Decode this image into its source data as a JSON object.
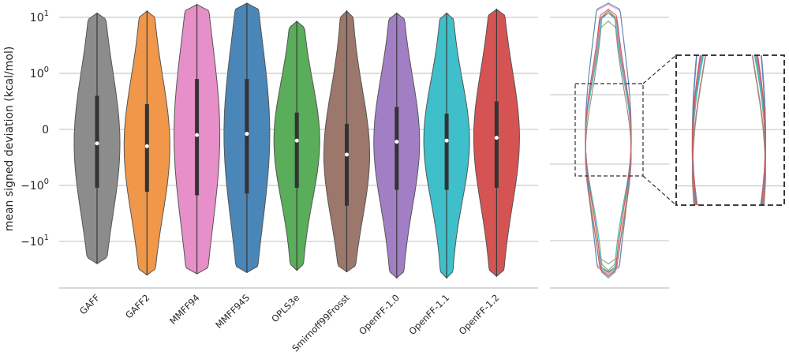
{
  "chart_data": {
    "type": "violin",
    "ylabel": "mean signed deviation (kcal/mol)",
    "yscale": "symlog",
    "y_ticks": [
      {
        "value": 10,
        "base": "10",
        "exp": "1"
      },
      {
        "value": 1,
        "base": "10",
        "exp": "0"
      },
      {
        "value": 0,
        "base": "0",
        "exp": ""
      },
      {
        "value": -1,
        "base": "−10",
        "exp": "0"
      },
      {
        "value": -10,
        "base": "−10",
        "exp": "1"
      }
    ],
    "grid": true,
    "categories": [
      "GAFF",
      "GAFF2",
      "MMFF94",
      "MMFF94S",
      "OPLS3e",
      "Smirnoff99Frosst",
      "OpenFF-1.0",
      "OpenFF-1.1",
      "OpenFF-1.2"
    ],
    "colors": [
      "#8c8c8c",
      "#f0974a",
      "#e78fc9",
      "#4a87b8",
      "#5aad5a",
      "#9c776b",
      "#a27fc4",
      "#3fbfca",
      "#d65353"
    ],
    "series": [
      {
        "category": "GAFF",
        "min": -25,
        "q1": -1.1,
        "median": -0.25,
        "q3": 0.6,
        "max": 12
      },
      {
        "category": "GAFF2",
        "min": -40,
        "q1": -1.3,
        "median": -0.3,
        "q3": 0.45,
        "max": 13
      },
      {
        "category": "MMFF94",
        "min": -38,
        "q1": -1.5,
        "median": -0.1,
        "q3": 0.9,
        "max": 17
      },
      {
        "category": "MMFF94S",
        "min": -36,
        "q1": -1.4,
        "median": -0.08,
        "q3": 0.9,
        "max": 18
      },
      {
        "category": "OPLS3e",
        "min": -33,
        "q1": -1.1,
        "median": -0.2,
        "q3": 0.3,
        "max": 8.5
      },
      {
        "category": "Smirnoff99Frosst",
        "min": -35,
        "q1": -2.3,
        "median": -0.45,
        "q3": 0.1,
        "max": 13
      },
      {
        "category": "OpenFF-1.0",
        "min": -45,
        "q1": -1.2,
        "median": -0.22,
        "q3": 0.4,
        "max": 12
      },
      {
        "category": "OpenFF-1.1",
        "min": -45,
        "q1": -1.2,
        "median": -0.2,
        "q3": 0.28,
        "max": 12
      },
      {
        "category": "OpenFF-1.2",
        "min": -42,
        "q1": -1.1,
        "median": -0.15,
        "q3": 0.5,
        "max": 14
      }
    ],
    "inset": {
      "description_type": "overlay",
      "content": "all nine distributions overlaid as outlines, with a dashed box around the central region enlarged on the right"
    }
  }
}
